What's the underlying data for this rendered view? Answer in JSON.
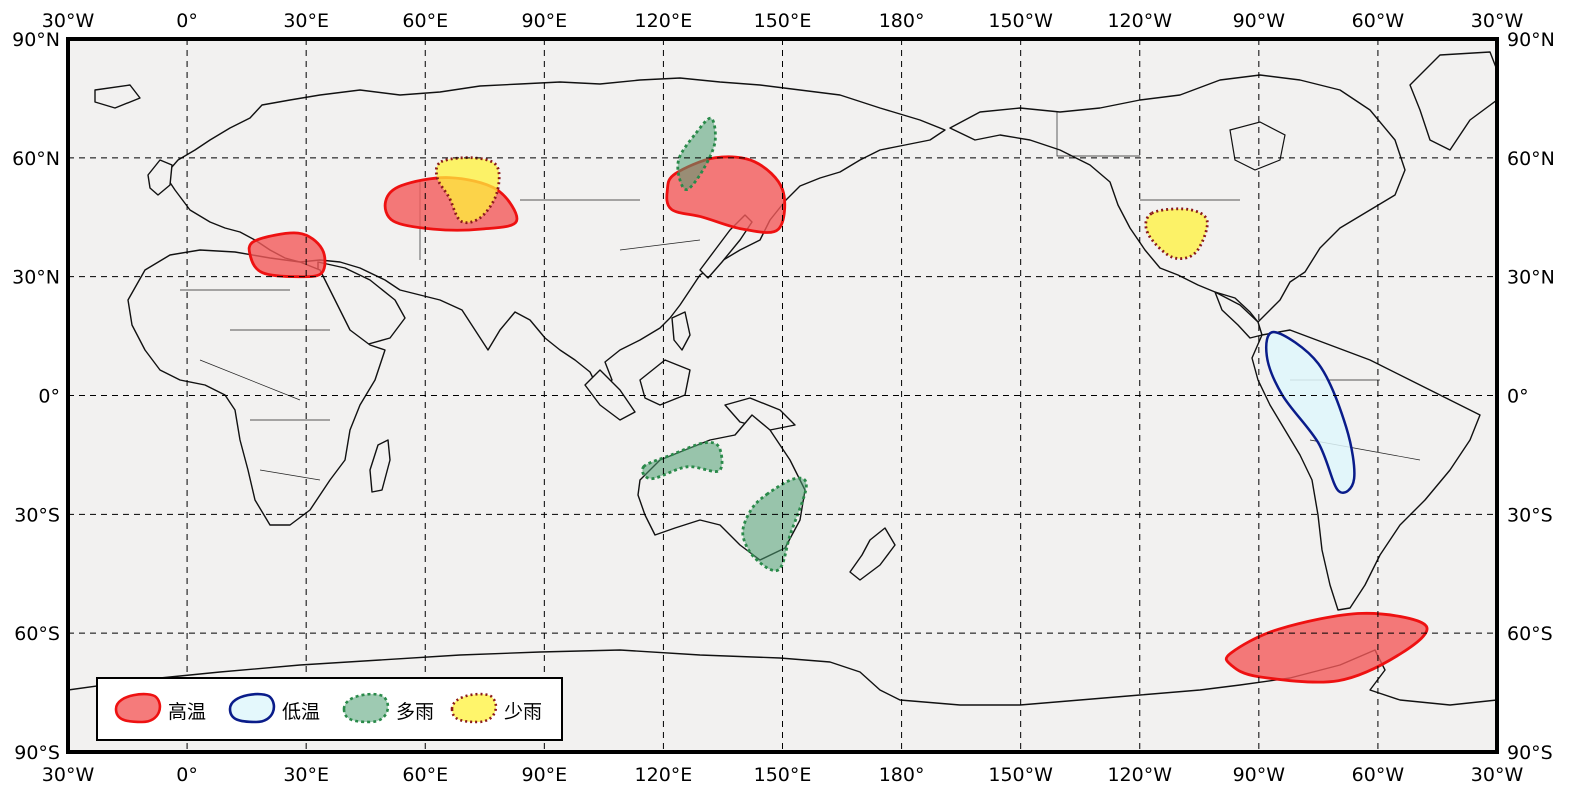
{
  "map": {
    "lon_min": -30,
    "lon_max": 330,
    "lat_min": -90,
    "lat_max": 90,
    "ocean_color": "#f2f1f0",
    "lon_ticks": [
      {
        "lon": -30,
        "label": "30°W"
      },
      {
        "lon": 0,
        "label": "0°"
      },
      {
        "lon": 30,
        "label": "30°E"
      },
      {
        "lon": 60,
        "label": "60°E"
      },
      {
        "lon": 90,
        "label": "90°E"
      },
      {
        "lon": 120,
        "label": "120°E"
      },
      {
        "lon": 150,
        "label": "150°E"
      },
      {
        "lon": 180,
        "label": "180°"
      },
      {
        "lon": 210,
        "label": "150°W"
      },
      {
        "lon": 240,
        "label": "120°W"
      },
      {
        "lon": 270,
        "label": "90°W"
      },
      {
        "lon": 300,
        "label": "60°W"
      },
      {
        "lon": 330,
        "label": "30°W"
      }
    ],
    "lat_ticks": [
      {
        "lat": 90,
        "label": "90°N"
      },
      {
        "lat": 60,
        "label": "60°N"
      },
      {
        "lat": 30,
        "label": "30°N"
      },
      {
        "lat": 0,
        "label": "0°"
      },
      {
        "lat": -30,
        "label": "30°S"
      },
      {
        "lat": -60,
        "label": "60°S"
      },
      {
        "lat": -90,
        "label": "90°S"
      }
    ]
  },
  "categories": {
    "hot": {
      "label": "高温",
      "fill": "#f25a5a",
      "opacity": 0.8,
      "stroke": "#ee1111",
      "dash": ""
    },
    "cold": {
      "label": "低温",
      "fill": "#dff7fb",
      "opacity": 0.85,
      "stroke": "#0a1c8a",
      "dash": ""
    },
    "wet": {
      "label": "多雨",
      "fill": "#4f9e72",
      "opacity": 0.55,
      "stroke": "#2a8a4a",
      "dash": "3 3"
    },
    "dry": {
      "label": "少雨",
      "fill": "#fff23a",
      "opacity": 0.75,
      "stroke": "#8b1a1a",
      "dash": "2 3"
    }
  },
  "legend_order": [
    "hot",
    "cold",
    "wet",
    "dry"
  ],
  "regions": [
    {
      "category": "hot",
      "name": "eastern-mediterranean",
      "points": [
        [
          17,
          39
        ],
        [
          28,
          41
        ],
        [
          34,
          37
        ],
        [
          34,
          31
        ],
        [
          28,
          30
        ],
        [
          19,
          31
        ],
        [
          16,
          35
        ]
      ]
    },
    {
      "category": "hot",
      "name": "central-asia",
      "points": [
        [
          54,
          53
        ],
        [
          66,
          55
        ],
        [
          78,
          52
        ],
        [
          83,
          44
        ],
        [
          74,
          42
        ],
        [
          62,
          42
        ],
        [
          52,
          44
        ],
        [
          50,
          49
        ]
      ]
    },
    {
      "category": "hot",
      "name": "east-siberia-manchuria",
      "points": [
        [
          123,
          56
        ],
        [
          133,
          60
        ],
        [
          143,
          59
        ],
        [
          150,
          52
        ],
        [
          149,
          42
        ],
        [
          140,
          42
        ],
        [
          130,
          45
        ],
        [
          122,
          47
        ],
        [
          121,
          52
        ]
      ]
    },
    {
      "category": "hot",
      "name": "antarctic-peninsula",
      "points": [
        [
          263,
          -68
        ],
        [
          270,
          -71
        ],
        [
          290,
          -72
        ],
        [
          306,
          -65
        ],
        [
          312,
          -58
        ],
        [
          296,
          -55
        ],
        [
          275,
          -59
        ],
        [
          263,
          -65
        ]
      ]
    },
    {
      "category": "cold",
      "name": "northwestern-south-america",
      "points": [
        [
          274,
          16
        ],
        [
          285,
          8
        ],
        [
          292,
          -8
        ],
        [
          294,
          -21
        ],
        [
          290,
          -24
        ],
        [
          285,
          -12
        ],
        [
          276,
          0
        ],
        [
          272,
          10
        ]
      ]
    },
    {
      "category": "wet",
      "name": "northeastern-siberia",
      "points": [
        [
          124,
          60
        ],
        [
          128,
          66
        ],
        [
          132,
          70
        ],
        [
          133,
          64
        ],
        [
          130,
          57
        ],
        [
          126,
          52
        ],
        [
          124,
          55
        ]
      ]
    },
    {
      "category": "wet",
      "name": "northern-australia",
      "points": [
        [
          115,
          -18
        ],
        [
          122,
          -15
        ],
        [
          130,
          -12
        ],
        [
          134,
          -13
        ],
        [
          134,
          -19
        ],
        [
          126,
          -18
        ],
        [
          117,
          -21
        ]
      ]
    },
    {
      "category": "wet",
      "name": "eastern-australia",
      "points": [
        [
          146,
          -25
        ],
        [
          153,
          -21
        ],
        [
          156,
          -23
        ],
        [
          152,
          -35
        ],
        [
          149,
          -44
        ],
        [
          143,
          -41
        ],
        [
          140,
          -35
        ],
        [
          142,
          -29
        ]
      ]
    },
    {
      "category": "dry",
      "name": "west-central-asia",
      "points": [
        [
          64,
          59
        ],
        [
          72,
          60
        ],
        [
          78,
          58
        ],
        [
          78,
          51
        ],
        [
          74,
          45
        ],
        [
          69,
          44
        ],
        [
          66,
          50
        ],
        [
          63,
          55
        ]
      ]
    },
    {
      "category": "dry",
      "name": "central-united-states",
      "points": [
        [
          243,
          46
        ],
        [
          252,
          47
        ],
        [
          257,
          44
        ],
        [
          254,
          36
        ],
        [
          248,
          35
        ],
        [
          242,
          41
        ]
      ]
    }
  ],
  "land_color": "#f2f1f0"
}
